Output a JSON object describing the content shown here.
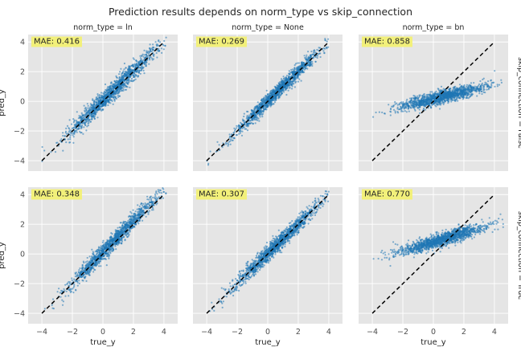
{
  "figure": {
    "title": "Prediction results depends on norm_type vs skip_connection",
    "column_titles": [
      "norm_type = ln",
      "norm_type = None",
      "norm_type = bn"
    ],
    "row_titles": [
      "skip_connection = False",
      "skip_connection = True"
    ],
    "xlabel": "true_y",
    "ylabel": "pred_y",
    "point_color": "#1f77b4",
    "annotation_color": "#f2f07a"
  },
  "chart_data": [
    {
      "type": "scatter",
      "row": "skip_connection = False",
      "col": "norm_type = ln",
      "annotation": "MAE: 0.416",
      "fit_slope": 1.0,
      "fit_intercept": 0.05,
      "spread": 0.32,
      "x_range": [
        -4.1,
        4.3
      ],
      "reference_line": [
        [
          -4,
          -4
        ],
        [
          4,
          4
        ]
      ],
      "xlim": [
        -4.9,
        4.9
      ],
      "ylim": [
        -4.7,
        4.5
      ]
    },
    {
      "type": "scatter",
      "row": "skip_connection = False",
      "col": "norm_type = None",
      "annotation": "MAE: 0.269",
      "fit_slope": 1.0,
      "fit_intercept": 0.0,
      "spread": 0.25,
      "x_range": [
        -4.0,
        4.0
      ],
      "reference_line": [
        [
          -4,
          -4
        ],
        [
          4,
          4
        ]
      ],
      "xlim": [
        -4.9,
        4.9
      ],
      "ylim": [
        -4.7,
        4.5
      ]
    },
    {
      "type": "scatter",
      "row": "skip_connection = False",
      "col": "norm_type = bn",
      "annotation": "MAE: 0.858",
      "fit_slope": 0.25,
      "fit_intercept": 0.15,
      "spread": 0.22,
      "x_range": [
        -4.1,
        4.6
      ],
      "reference_line": [
        [
          -4,
          -4
        ],
        [
          4,
          4
        ]
      ],
      "xlim": [
        -4.9,
        4.9
      ],
      "ylim": [
        -4.7,
        4.5
      ]
    },
    {
      "type": "scatter",
      "row": "skip_connection = True",
      "col": "norm_type = ln",
      "annotation": "MAE: 0.348",
      "fit_slope": 1.05,
      "fit_intercept": 0.1,
      "spread": 0.3,
      "x_range": [
        -4.0,
        4.2
      ],
      "reference_line": [
        [
          -4,
          -4
        ],
        [
          4,
          4
        ]
      ],
      "xlim": [
        -4.9,
        4.9
      ],
      "ylim": [
        -4.7,
        4.5
      ]
    },
    {
      "type": "scatter",
      "row": "skip_connection = True",
      "col": "norm_type = None",
      "annotation": "MAE: 0.307",
      "fit_slope": 1.0,
      "fit_intercept": 0.0,
      "spread": 0.28,
      "x_range": [
        -4.0,
        4.0
      ],
      "reference_line": [
        [
          -4,
          -4
        ],
        [
          4,
          4
        ]
      ],
      "xlim": [
        -4.9,
        4.9
      ],
      "ylim": [
        -4.7,
        4.5
      ]
    },
    {
      "type": "scatter",
      "row": "skip_connection = True",
      "col": "norm_type = bn",
      "annotation": "MAE: 0.770",
      "fit_slope": 0.3,
      "fit_intercept": 0.8,
      "spread": 0.22,
      "x_range": [
        -4.1,
        4.6
      ],
      "reference_line": [
        [
          -4,
          -4
        ],
        [
          4,
          4
        ]
      ],
      "xlim": [
        -4.9,
        4.9
      ],
      "ylim": [
        -4.7,
        4.5
      ]
    }
  ],
  "axes": {
    "x_ticks": [
      -4,
      -2,
      0,
      2,
      4
    ],
    "y_ticks": [
      -4,
      -2,
      0,
      2,
      4
    ],
    "tick_labels": [
      "−4",
      "−2",
      "0",
      "2",
      "4"
    ]
  }
}
